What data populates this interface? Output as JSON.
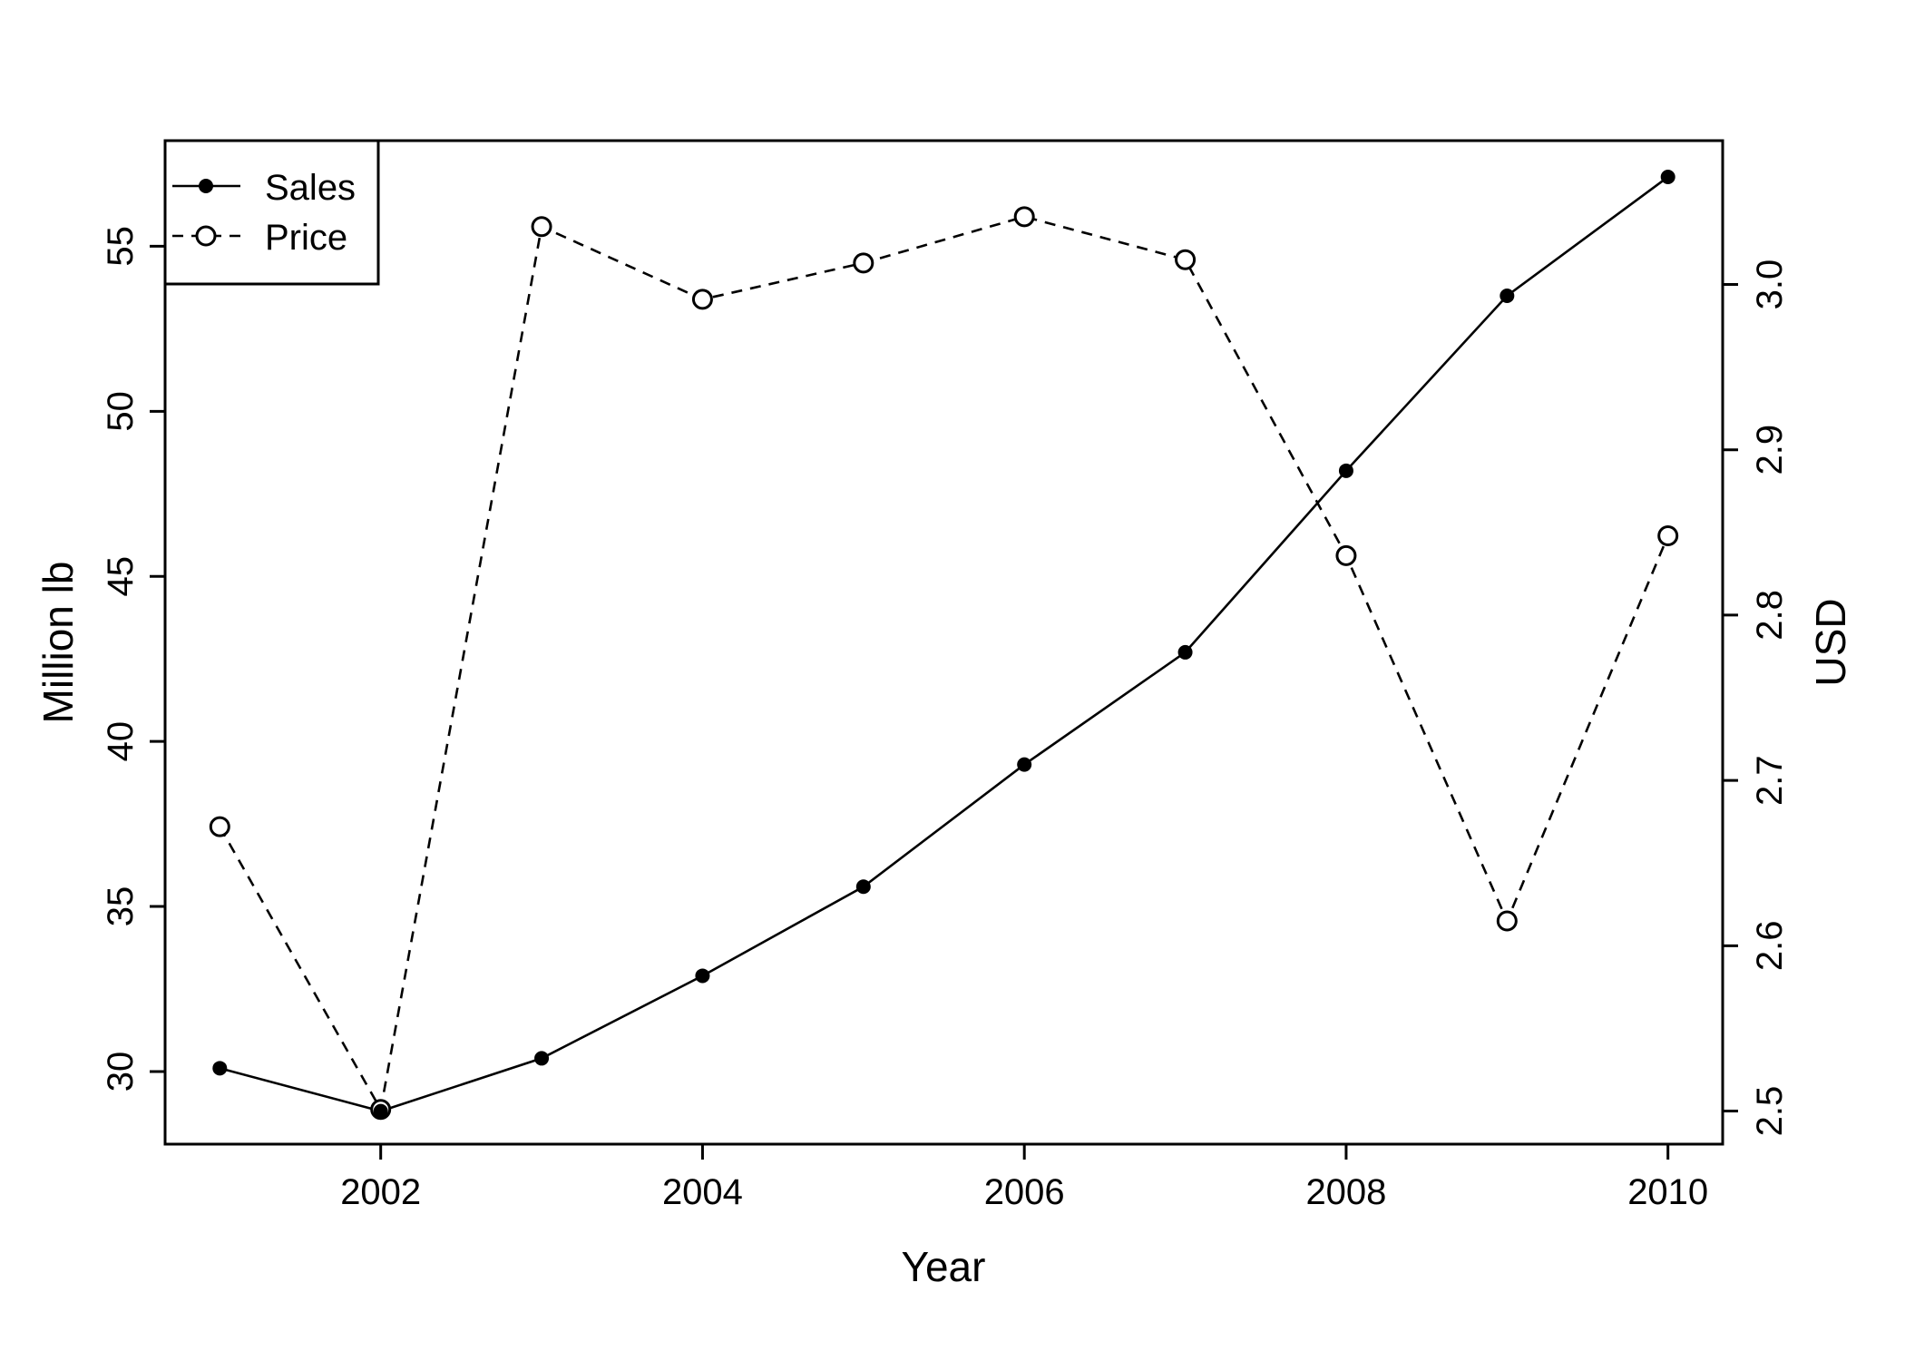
{
  "chart_data": {
    "type": "line",
    "title": "",
    "xlabel": "Year",
    "ylabel": "Million lb",
    "y2label": "USD",
    "x": [
      2001,
      2002,
      2003,
      2004,
      2005,
      2006,
      2007,
      2008,
      2009,
      2010
    ],
    "xlim": [
      2000.66,
      2010.34
    ],
    "ylim": [
      27.8,
      58.2
    ],
    "y2lim": [
      2.48,
      3.087
    ],
    "x_ticks": [
      2002,
      2004,
      2006,
      2008,
      2010
    ],
    "y_ticks": [
      30,
      35,
      40,
      45,
      50,
      55
    ],
    "y2_ticks": [
      "2.5",
      "2.6",
      "2.7",
      "2.8",
      "2.9",
      "3.0"
    ],
    "legend_position": "top-left",
    "grid": false,
    "series": [
      {
        "name": "Sales",
        "axis": "left",
        "marker": "filled-circle",
        "line": "solid",
        "values": [
          30.1,
          28.8,
          30.4,
          32.9,
          35.6,
          39.3,
          42.7,
          48.2,
          53.5,
          57.1
        ]
      },
      {
        "name": "Price",
        "axis": "right",
        "marker": "open-circle",
        "line": "dashed",
        "values": [
          2.672,
          2.501,
          3.035,
          2.991,
          3.013,
          3.041,
          3.015,
          2.836,
          2.615,
          2.848
        ]
      }
    ]
  }
}
